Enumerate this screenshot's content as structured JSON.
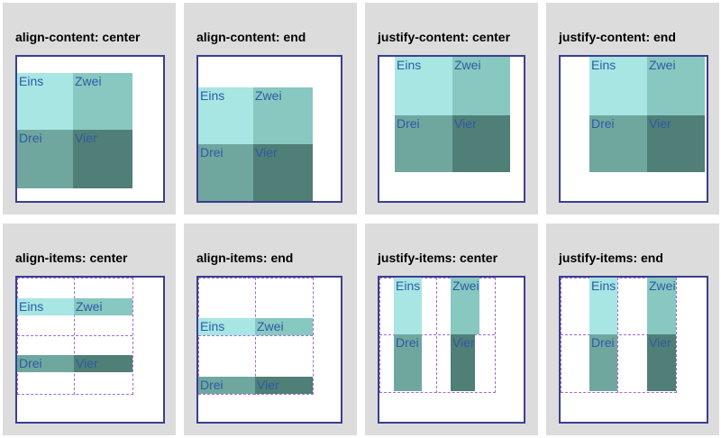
{
  "panels": [
    {
      "title": "align-content: center",
      "items": [
        "Eins",
        "Zwei",
        "Drei",
        "Vier"
      ]
    },
    {
      "title": "align-content: end",
      "items": [
        "Eins",
        "Zwei",
        "Drei",
        "Vier"
      ]
    },
    {
      "title": "justify-content: center",
      "items": [
        "Eins",
        "Zwei",
        "Drei",
        "Vier"
      ]
    },
    {
      "title": "justify-content: end",
      "items": [
        "Eins",
        "Zwei",
        "Drei",
        "Vier"
      ]
    },
    {
      "title": "align-items: center",
      "items": [
        "Eins",
        "Zwei",
        "Drei",
        "Vier"
      ]
    },
    {
      "title": "align-items: end",
      "items": [
        "Eins",
        "Zwei",
        "Drei",
        "Vier"
      ]
    },
    {
      "title": "justify-items: center",
      "items": [
        "Eins",
        "Zwei",
        "Drei",
        "Vier"
      ]
    },
    {
      "title": "justify-items: end",
      "items": [
        "Eins",
        "Zwei",
        "Drei",
        "Vier"
      ]
    }
  ]
}
